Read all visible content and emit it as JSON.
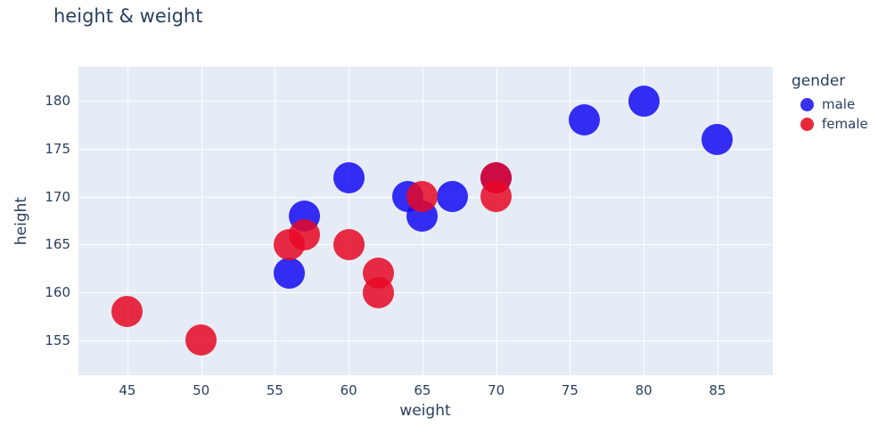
{
  "chart_data": {
    "type": "scatter",
    "title": "height & weight",
    "xlabel": "weight",
    "ylabel": "height",
    "legend_title": "gender",
    "legend_position": "right",
    "grid": true,
    "x_ticks": [
      45,
      50,
      55,
      60,
      65,
      70,
      75,
      80,
      85
    ],
    "y_ticks": [
      155,
      160,
      165,
      170,
      175,
      180
    ],
    "x_range": [
      41.68,
      88.75
    ],
    "y_range": [
      151.34,
      183.57
    ],
    "marker_size": 35,
    "plot_bg": "#e5ecf6",
    "grid_color": "#ffffff",
    "text_color": "#2a3f5f",
    "series": [
      {
        "name": "male",
        "color": "#3931f0",
        "fill": "rgba(20,10,242,0.85)",
        "points": [
          [
            56,
            162
          ],
          [
            57,
            168
          ],
          [
            60,
            172
          ],
          [
            64,
            170
          ],
          [
            65,
            168
          ],
          [
            67,
            170
          ],
          [
            70,
            172
          ],
          [
            76,
            178
          ],
          [
            80,
            180
          ],
          [
            85,
            176
          ]
        ]
      },
      {
        "name": "female",
        "color": "#e7293b",
        "fill": "rgba(232,8,36,0.85)",
        "points": [
          [
            45,
            158
          ],
          [
            50,
            155
          ],
          [
            56,
            165
          ],
          [
            57,
            166
          ],
          [
            60,
            165
          ],
          [
            62,
            162
          ],
          [
            62,
            160
          ],
          [
            65,
            170
          ],
          [
            70,
            172
          ],
          [
            70,
            170
          ]
        ]
      }
    ]
  }
}
